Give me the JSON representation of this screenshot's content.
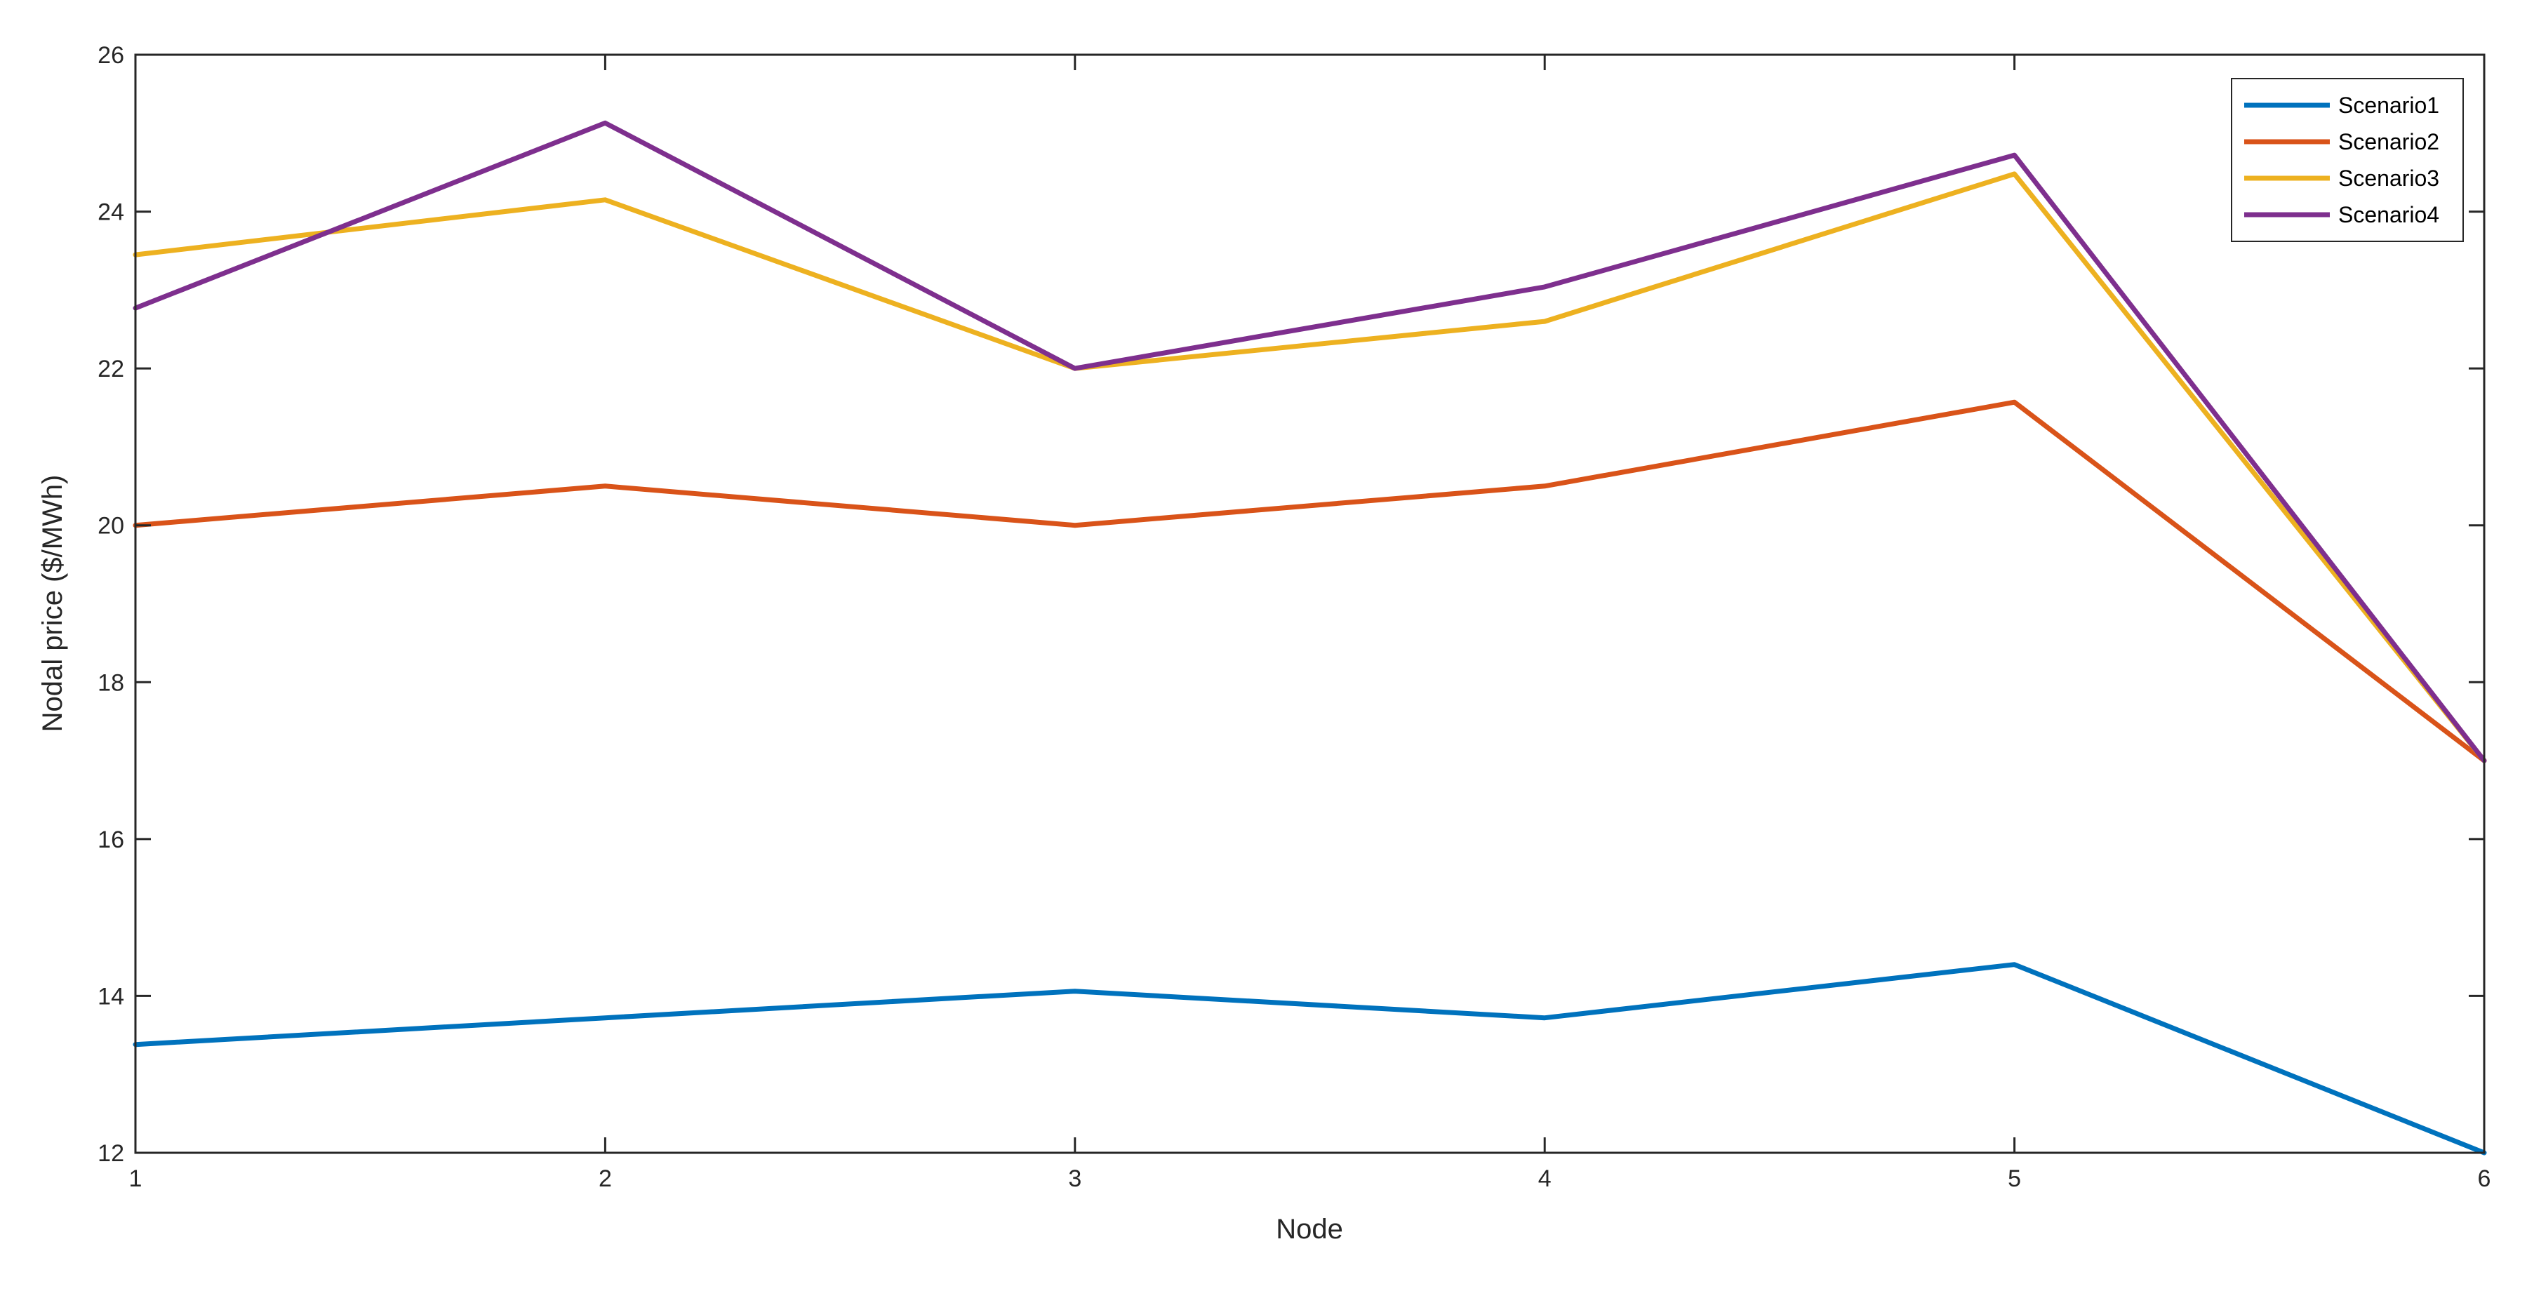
{
  "chart_data": {
    "type": "line",
    "title": "",
    "xlabel": "Node",
    "ylabel": "Nodal price ($/MWh)",
    "x": [
      1,
      2,
      3,
      4,
      5,
      6
    ],
    "xlim": [
      1,
      6
    ],
    "ylim": [
      12,
      26
    ],
    "xticks": [
      "1",
      "2",
      "3",
      "4",
      "5",
      "6"
    ],
    "yticks": [
      "12",
      "14",
      "16",
      "18",
      "20",
      "22",
      "24",
      "26"
    ],
    "grid": false,
    "legend_position": "top-right",
    "series": [
      {
        "name": "Scenario1",
        "color": "#0072BD",
        "values": [
          13.38,
          13.72,
          14.06,
          13.72,
          14.4,
          12.0
        ]
      },
      {
        "name": "Scenario2",
        "color": "#D95319",
        "values": [
          20.0,
          20.5,
          20.0,
          20.5,
          21.57,
          17.0
        ]
      },
      {
        "name": "Scenario3",
        "color": "#EDB120",
        "values": [
          23.45,
          24.15,
          22.0,
          22.6,
          24.48,
          17.0
        ]
      },
      {
        "name": "Scenario4",
        "color": "#7E2F8E",
        "values": [
          22.77,
          25.13,
          22.0,
          23.04,
          24.72,
          17.0
        ]
      }
    ]
  }
}
